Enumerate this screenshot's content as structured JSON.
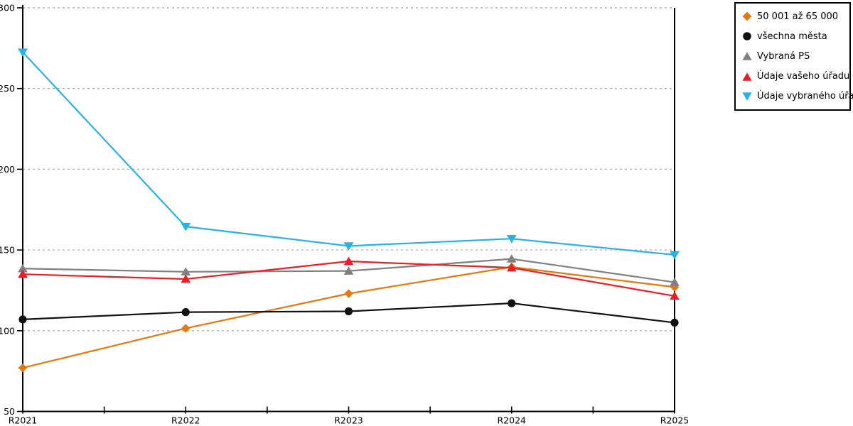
{
  "chart_data": {
    "type": "line",
    "title": "",
    "xlabel": "",
    "ylabel": "",
    "categories": [
      "R2021",
      "R2022",
      "R2023",
      "R2024",
      "R2025"
    ],
    "ylim": [
      50,
      300
    ],
    "yticks": [
      50,
      100,
      150,
      200,
      250,
      300
    ],
    "grid": "horizontal-dotted",
    "legend_position": "outside-top-right",
    "series": [
      {
        "name": "50 001 až 65 000",
        "marker": "diamond",
        "color": "#e5780d",
        "values": [
          77,
          101.5,
          123,
          139.5,
          127
        ]
      },
      {
        "name": "všechna města",
        "marker": "circle",
        "color": "#111111",
        "values": [
          107,
          111.5,
          112,
          117,
          105
        ]
      },
      {
        "name": "Vybraná PS",
        "marker": "triangle-up",
        "color": "#808080",
        "values": [
          138.5,
          136.5,
          137,
          144.5,
          130
        ]
      },
      {
        "name": "Údaje vašeho úřadu",
        "marker": "triangle-up",
        "color": "#ee1c25",
        "values": [
          135,
          132,
          143,
          139,
          121.5
        ]
      },
      {
        "name": "Údaje vybraného úřadu",
        "marker": "triangle-down",
        "color": "#2ab1e3",
        "values": [
          272.5,
          164.5,
          152.5,
          157,
          147
        ]
      }
    ]
  },
  "colors": {
    "background": "#ffffff",
    "axis": "#000000",
    "gridline": "#b3b3b3",
    "tick_label": "#000000"
  }
}
